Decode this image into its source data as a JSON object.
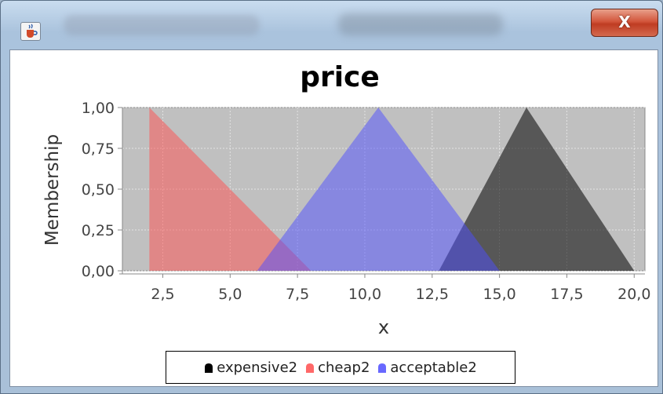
{
  "window": {
    "close_glyph": "X",
    "app_icon": "java-cup-icon",
    "close_icon": "close-icon"
  },
  "chart_data": {
    "type": "area",
    "title": "price",
    "xlabel": "x",
    "ylabel": "Membership",
    "xlim": [
      1.0,
      20.4
    ],
    "ylim": [
      0.0,
      1.0
    ],
    "xticks": [
      "2,5",
      "5,0",
      "7,5",
      "10,0",
      "12,5",
      "15,0",
      "17,5",
      "20,0"
    ],
    "yticks": [
      "0,00",
      "0,25",
      "0,50",
      "0,75",
      "1,00"
    ],
    "grid": true,
    "legend_position": "bottom",
    "series": [
      {
        "name": "expensive2",
        "color": "#000000",
        "points": [
          [
            12.75,
            0.0
          ],
          [
            16.0,
            1.0
          ],
          [
            20.0,
            0.0
          ]
        ]
      },
      {
        "name": "cheap2",
        "color": "#ff4d4d",
        "points": [
          [
            2.0,
            0.0
          ],
          [
            2.0,
            1.0
          ],
          [
            8.0,
            0.0
          ]
        ]
      },
      {
        "name": "acceptable2",
        "color": "#4d4dff",
        "points": [
          [
            6.0,
            0.0
          ],
          [
            10.5,
            1.0
          ],
          [
            15.0,
            0.0
          ]
        ]
      }
    ]
  }
}
